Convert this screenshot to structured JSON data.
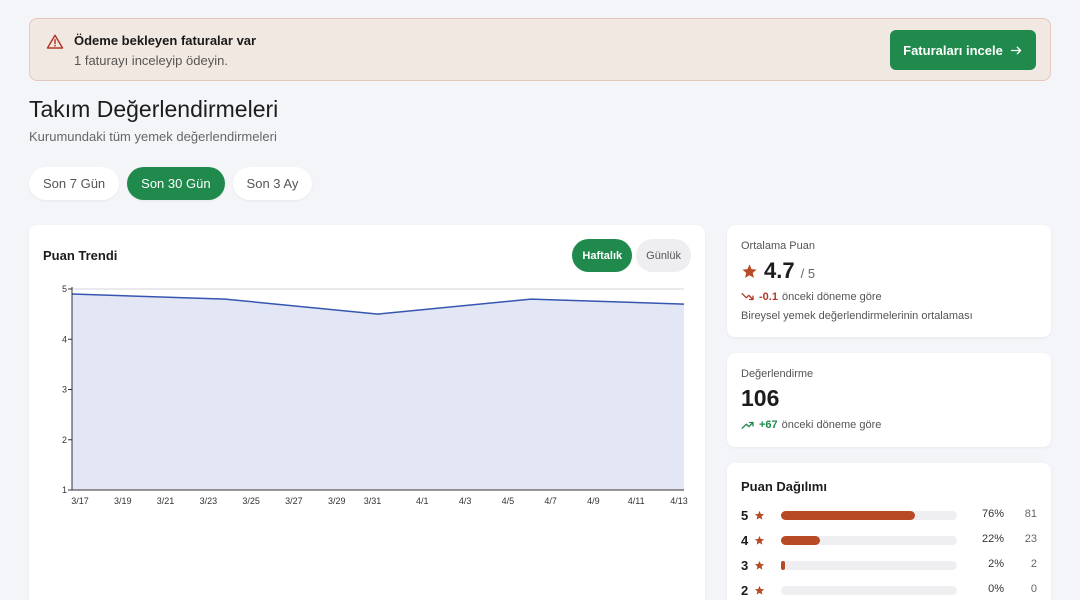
{
  "banner": {
    "title": "Ödeme bekleyen faturalar var",
    "subtitle": "1 faturayı inceleyip ödeyin.",
    "button_label": "Faturaları incele",
    "icon": "warning-icon"
  },
  "header": {
    "title": "Takım Değerlendirmeleri",
    "subtitle": "Kurumundaki tüm yemek değerlendirmeleri"
  },
  "range_tabs": [
    {
      "label": "Son 7 Gün",
      "active": false
    },
    {
      "label": "Son 30 Gün",
      "active": true
    },
    {
      "label": "Son 3 Ay",
      "active": false
    }
  ],
  "trend": {
    "title": "Puan Trendi",
    "granularity": [
      {
        "label": "Haftalık",
        "active": true
      },
      {
        "label": "Günlük",
        "active": false
      }
    ]
  },
  "chart_data": {
    "type": "area",
    "title": "Puan Trendi",
    "xlabel": "",
    "ylabel": "",
    "x_range": [
      "2024-03-17",
      "2024-04-14"
    ],
    "x_ticks": [
      "3/17",
      "3/19",
      "3/21",
      "3/23",
      "3/25",
      "3/27",
      "3/29",
      "3/31",
      "4/1",
      "4/3",
      "4/5",
      "4/7",
      "4/9",
      "4/11",
      "4/13"
    ],
    "ylim": [
      1,
      5
    ],
    "y_ticks": [
      1,
      2,
      3,
      4,
      5
    ],
    "grid": true,
    "series": [
      {
        "x": [
          "2024-03-17",
          "2024-03-24",
          "2024-03-31",
          "2024-04-07",
          "2024-04-14"
        ],
        "values": [
          4.9,
          4.8,
          4.5,
          4.8,
          4.7
        ]
      }
    ],
    "colors": {
      "line": "#3556b0",
      "fill": "#e3e6f5"
    }
  },
  "average": {
    "label": "Ortalama Puan",
    "value": "4.7",
    "max": "/ 5",
    "delta": "-0.1",
    "delta_text": "önceki döneme göre",
    "note": "Bireysel yemek değerlendirmelerinin ortalaması"
  },
  "reviews": {
    "label": "Değerlendirme",
    "value": "106",
    "delta": "+67",
    "delta_text": "önceki döneme göre"
  },
  "distribution": {
    "title": "Puan Dağılımı",
    "rows": [
      {
        "level": "5",
        "pct": "76%",
        "count": "81",
        "fraction": 0.76
      },
      {
        "level": "4",
        "pct": "22%",
        "count": "23",
        "fraction": 0.22
      },
      {
        "level": "3",
        "pct": "2%",
        "count": "2",
        "fraction": 0.02
      },
      {
        "level": "2",
        "pct": "0%",
        "count": "0",
        "fraction": 0.0
      }
    ]
  },
  "colors": {
    "accent": "#1f8a4c",
    "star": "#b84a25",
    "negative": "#b23a2a",
    "banner_bg": "#f2e8e2"
  }
}
